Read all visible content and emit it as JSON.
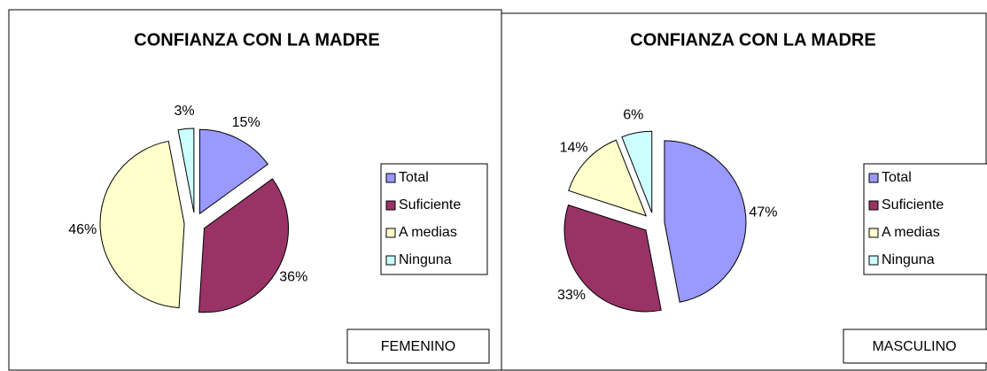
{
  "chart_data": [
    {
      "type": "pie",
      "title": "CONFIANZA CON LA MADRE",
      "categories": [
        "Total",
        "Suficiente",
        "A medias",
        "Ninguna"
      ],
      "values": [
        15,
        36,
        46,
        3
      ],
      "value_labels": [
        "15%",
        "36%",
        "46%",
        "3%"
      ],
      "colors": [
        "#9999ff",
        "#993366",
        "#ffffcc",
        "#ccffff"
      ],
      "annotation": "FEMENINO"
    },
    {
      "type": "pie",
      "title": "CONFIANZA CON LA MADRE",
      "categories": [
        "Total",
        "Suficiente",
        "A medias",
        "Ninguna"
      ],
      "values": [
        47,
        33,
        14,
        6
      ],
      "value_labels": [
        "47%",
        "33%",
        "14%",
        "6%"
      ],
      "colors": [
        "#9999ff",
        "#993366",
        "#ffffcc",
        "#ccffff"
      ],
      "annotation": "MASCULINO"
    }
  ]
}
